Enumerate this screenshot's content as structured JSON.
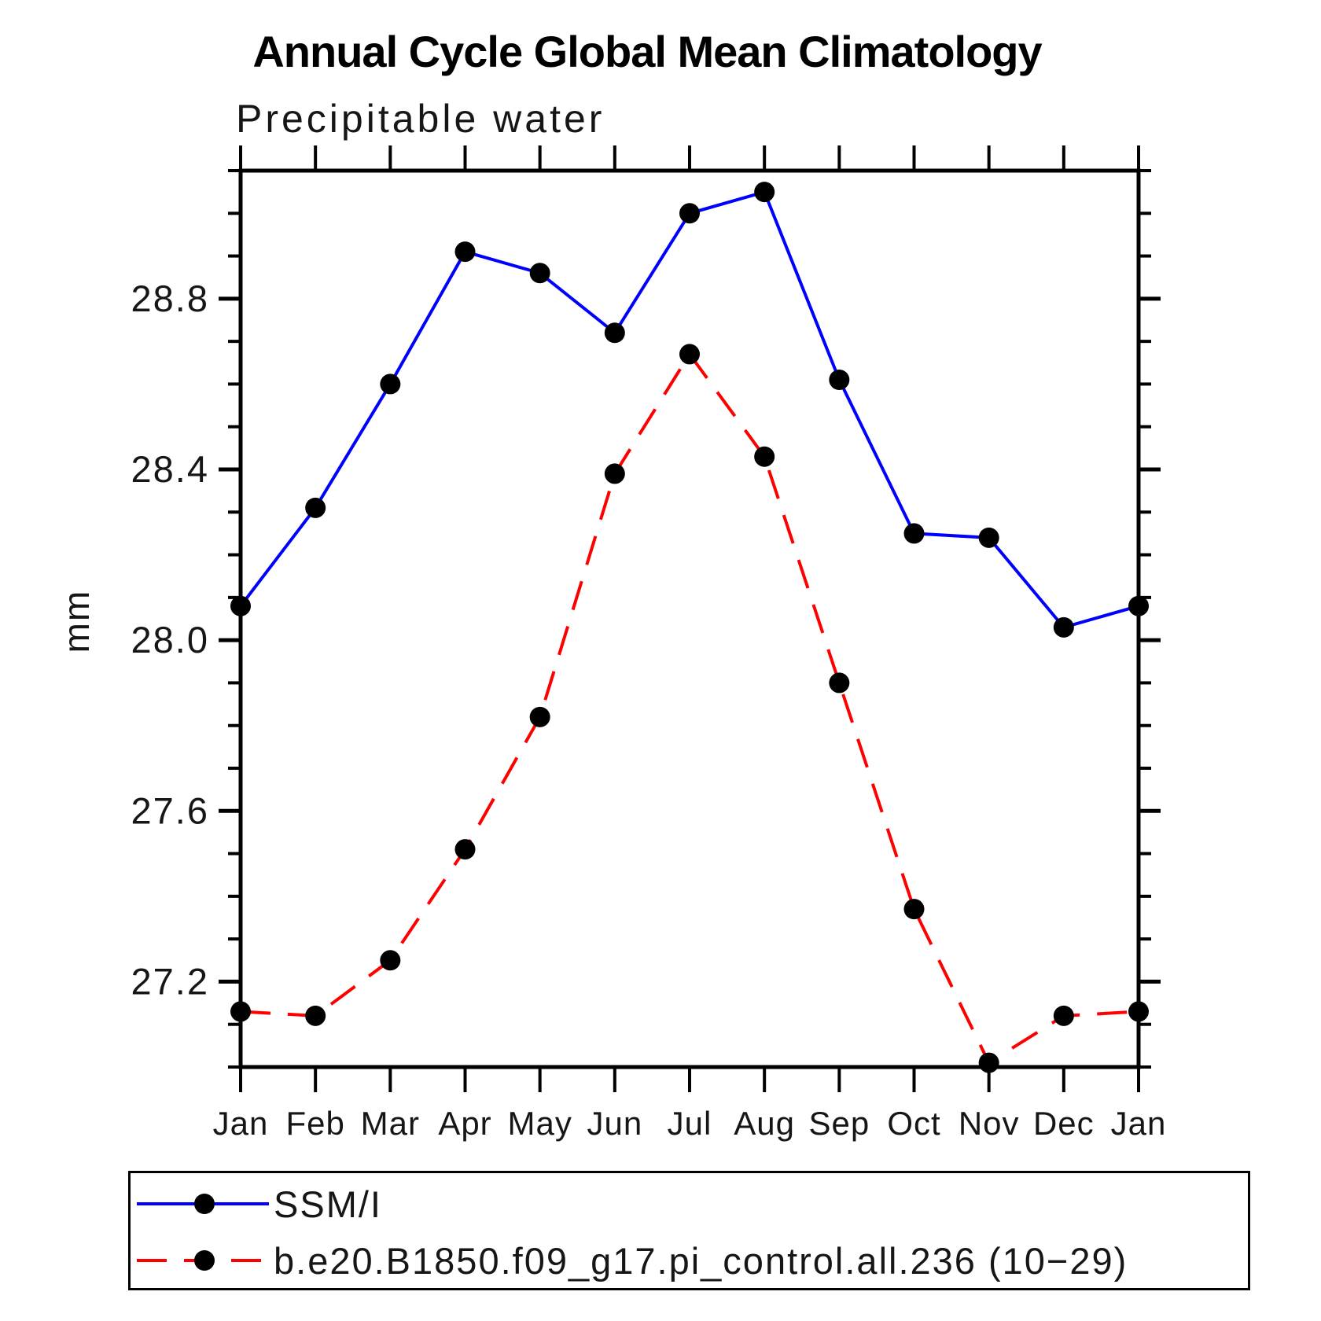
{
  "title": "Annual Cycle Global Mean Climatology",
  "chart_data": {
    "type": "line",
    "title": "Annual Cycle Global Mean Climatology",
    "subtitle": "Precipitable water",
    "ylabel": "mm",
    "xlabel": "",
    "x_categories": [
      "Jan",
      "Feb",
      "Mar",
      "Apr",
      "May",
      "Jun",
      "Jul",
      "Aug",
      "Sep",
      "Oct",
      "Nov",
      "Dec",
      "Jan"
    ],
    "ylim": [
      27.0,
      29.1
    ],
    "ytick_major_values": [
      27.2,
      27.6,
      28.0,
      28.4,
      28.8
    ],
    "ytick_major_labels": [
      "27.2",
      "27.6",
      "28.0",
      "28.4",
      "28.8"
    ],
    "yminor_step": 0.1,
    "grid": false,
    "legend_position": "bottom-left-box",
    "series": [
      {
        "name": "SSM/I",
        "color": "#0000FF",
        "line_style": "solid",
        "marker": "circle",
        "marker_color": "#000000",
        "values": [
          28.08,
          28.31,
          28.6,
          28.91,
          28.86,
          28.72,
          29.0,
          29.05,
          28.61,
          28.25,
          28.24,
          28.03,
          28.08
        ]
      },
      {
        "name": "b.e20.B1850.f09_g17.pi_control.all.236 (10−29)",
        "color": "#FF0000",
        "line_style": "dashed",
        "marker": "circle",
        "marker_color": "#000000",
        "values": [
          27.13,
          27.12,
          27.25,
          27.51,
          27.82,
          28.39,
          28.67,
          28.43,
          27.9,
          27.37,
          27.01,
          27.12,
          27.13
        ]
      }
    ]
  }
}
